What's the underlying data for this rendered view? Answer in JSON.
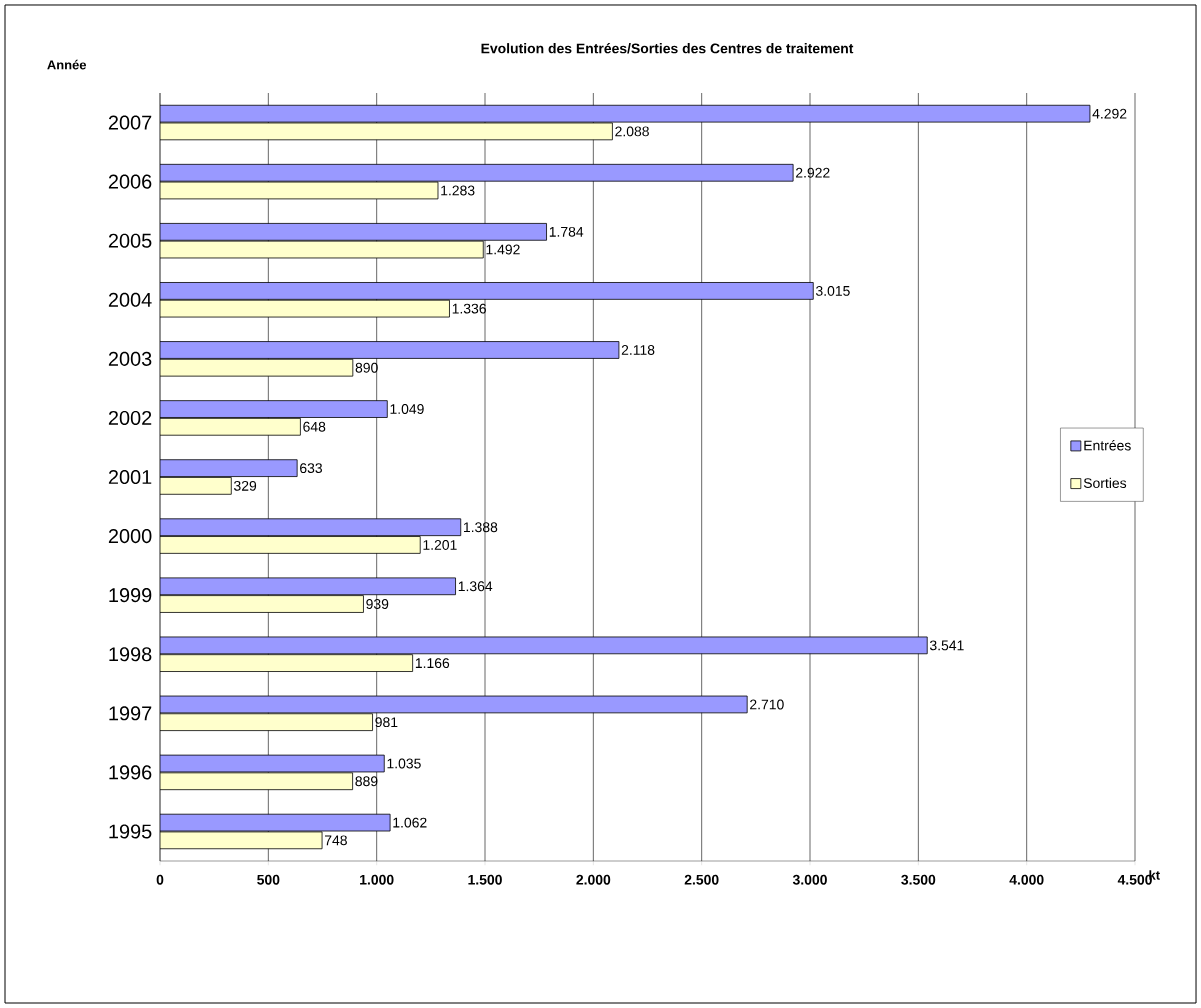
{
  "chart_data": {
    "type": "bar",
    "orientation": "horizontal",
    "title": "Evolution des Entrées/Sorties des Centres de traitement",
    "xlabel": "kt",
    "ylabel": "Année",
    "categories": [
      "2007",
      "2006",
      "2005",
      "2004",
      "2003",
      "2002",
      "2001",
      "2000",
      "1999",
      "1998",
      "1997",
      "1996",
      "1995"
    ],
    "series": [
      {
        "name": "Entrées",
        "color": "#9999ff",
        "values": [
          4292,
          2922,
          1784,
          3015,
          2118,
          1049,
          633,
          1388,
          1364,
          3541,
          2710,
          1035,
          1062
        ],
        "value_labels": [
          "4.292",
          "2.922",
          "1.784",
          "3.015",
          "2.118",
          "1.049",
          "633",
          "1.388",
          "1.364",
          "3.541",
          "2.710",
          "1.035",
          "1.062"
        ]
      },
      {
        "name": "Sorties",
        "color": "#ffffcc",
        "values": [
          2088,
          1283,
          1492,
          1336,
          890,
          648,
          329,
          1201,
          939,
          1166,
          981,
          889,
          748
        ],
        "value_labels": [
          "2.088",
          "1.283",
          "1.492",
          "1.336",
          "890",
          "648",
          "329",
          "1.201",
          "939",
          "1.166",
          "981",
          "889",
          "748"
        ]
      }
    ],
    "xlim": [
      0,
      4500
    ],
    "xticks": [
      0,
      500,
      {
        "value": 1000,
        "label": "1.000"
      },
      {
        "value": 1500,
        "label": "1.500"
      },
      {
        "value": 2000,
        "label": "2.000"
      },
      {
        "value": 2500,
        "label": "2.500"
      },
      {
        "value": 3000,
        "label": "3.000"
      },
      {
        "value": 3500,
        "label": "3.500"
      },
      {
        "value": 4000,
        "label": "4.000"
      },
      {
        "value": 4500,
        "label": "4.500"
      }
    ],
    "grid": "x",
    "legend": "right"
  }
}
